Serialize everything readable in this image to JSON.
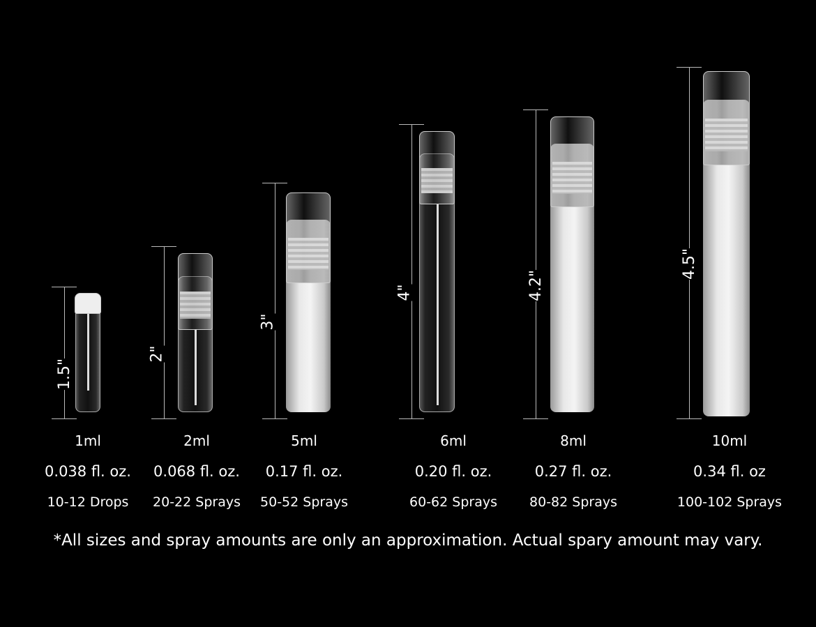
{
  "vials": [
    {
      "height": "1.5\"",
      "volume": "1ml",
      "fl_oz": "0.038 fl. oz.",
      "sprays": "10-12 Drops",
      "finish": "clear"
    },
    {
      "height": "2\"",
      "volume": "2ml",
      "fl_oz": "0.068 fl. oz.",
      "sprays": "20-22 Sprays",
      "finish": "clear"
    },
    {
      "height": "3\"",
      "volume": "5ml",
      "fl_oz": "0.17 fl. oz.",
      "sprays": "50-52 Sprays",
      "finish": "frosted"
    },
    {
      "height": "4\"",
      "volume": "6ml",
      "fl_oz": "0.20 fl. oz.",
      "sprays": "60-62 Sprays",
      "finish": "clear"
    },
    {
      "height": "4.2\"",
      "volume": "8ml",
      "fl_oz": "0.27 fl. oz.",
      "sprays": "80-82 Sprays",
      "finish": "frosted"
    },
    {
      "height": "4.5\"",
      "volume": "10ml",
      "fl_oz": "0.34 fl. oz",
      "sprays": "100-102 Sprays",
      "finish": "frosted"
    }
  ],
  "footnote": "*All sizes and spray amounts are only an approximation. Actual spary amount may vary.",
  "colors": {
    "background": "#000000",
    "text": "#ffffff"
  }
}
